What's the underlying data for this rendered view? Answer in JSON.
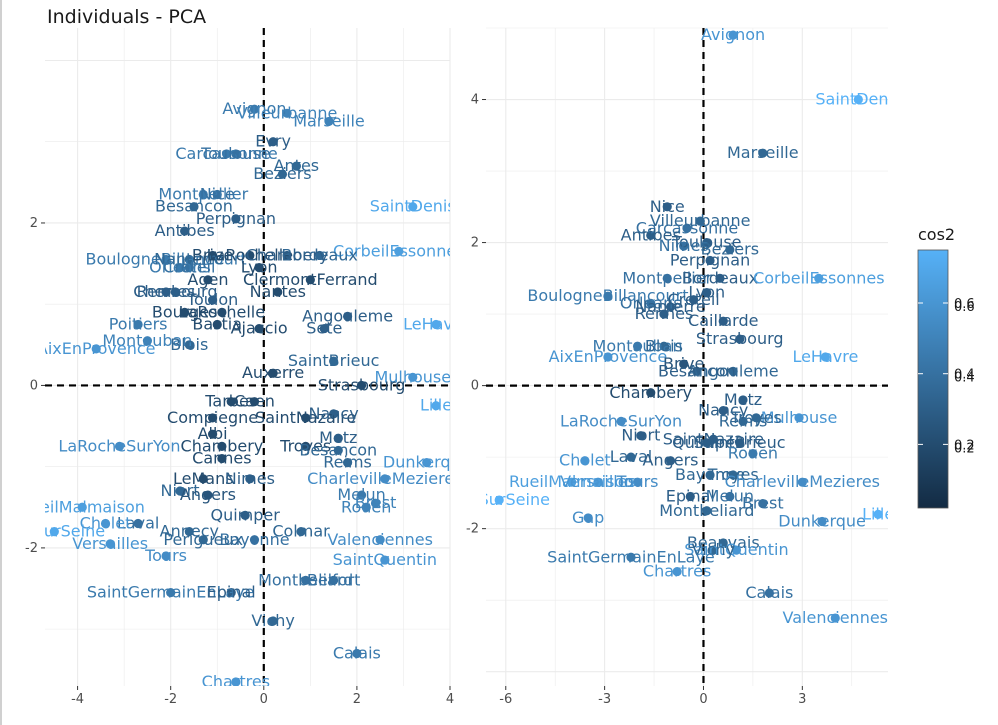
{
  "title": "Individuals - PCA",
  "legend": {
    "title": "cos2",
    "panel1_ticks": [
      0.2,
      0.4,
      0.6
    ],
    "panel2_ticks": [
      0.2,
      0.4,
      0.6
    ],
    "colors": {
      "low": "#132B43",
      "high": "#56B1F7"
    }
  },
  "chart_data": [
    {
      "type": "scatter",
      "title": "",
      "xlabel": "",
      "ylabel": "",
      "xlim": [
        -4.7,
        4.0
      ],
      "ylim": [
        -3.7,
        4.4
      ],
      "xticks": [
        -4,
        -2,
        0,
        2,
        4
      ],
      "yticks": [
        -2,
        0,
        2
      ],
      "grid": true,
      "legend_placement": "right",
      "points": [
        {
          "label": "Avignon",
          "x": -0.2,
          "y": 3.4,
          "cos2": 0.45
        },
        {
          "label": "Villeurbanne",
          "x": 0.5,
          "y": 3.35,
          "cos2": 0.5
        },
        {
          "label": "Marseille",
          "x": 1.4,
          "y": 3.25,
          "cos2": 0.5
        },
        {
          "label": "Evry",
          "x": 0.2,
          "y": 3.0,
          "cos2": 0.3
        },
        {
          "label": "Carcassonne",
          "x": -0.8,
          "y": 2.85,
          "cos2": 0.45
        },
        {
          "label": "Toulouse",
          "x": -0.6,
          "y": 2.85,
          "cos2": 0.4
        },
        {
          "label": "Antes",
          "x": 0.7,
          "y": 2.7,
          "cos2": 0.35
        },
        {
          "label": "Beziers",
          "x": 0.4,
          "y": 2.6,
          "cos2": 0.35
        },
        {
          "label": "Montpellier",
          "x": -1.3,
          "y": 2.35,
          "cos2": 0.45
        },
        {
          "label": "Nice",
          "x": -1.0,
          "y": 2.35,
          "cos2": 0.4
        },
        {
          "label": "Besancon",
          "x": -1.5,
          "y": 2.2,
          "cos2": 0.35
        },
        {
          "label": "SaintDenis",
          "x": 3.2,
          "y": 2.2,
          "cos2": 0.7
        },
        {
          "label": "Perpignan",
          "x": -0.6,
          "y": 2.05,
          "cos2": 0.3
        },
        {
          "label": "Antibes",
          "x": -1.7,
          "y": 1.9,
          "cos2": 0.3
        },
        {
          "label": "CorbeilEssonnes",
          "x": 2.9,
          "y": 1.65,
          "cos2": 0.65
        },
        {
          "label": "BoulogneBillancourt",
          "x": -2.1,
          "y": 1.55,
          "cos2": 0.45
        },
        {
          "label": "Nanterre",
          "x": -1.6,
          "y": 1.55,
          "cos2": 0.35
        },
        {
          "label": "Brive",
          "x": -1.1,
          "y": 1.6,
          "cos2": 0.2
        },
        {
          "label": "LaRochelle",
          "x": -0.3,
          "y": 1.6,
          "cos2": 0.2
        },
        {
          "label": "Bordeaux",
          "x": 1.2,
          "y": 1.6,
          "cos2": 0.35
        },
        {
          "label": "Chambery",
          "x": 0.5,
          "y": 1.6,
          "cos2": 0.3
        },
        {
          "label": "Orleans",
          "x": -1.8,
          "y": 1.45,
          "cos2": 0.45
        },
        {
          "label": "Creteil",
          "x": -1.6,
          "y": 1.45,
          "cos2": 0.4
        },
        {
          "label": "Lyon",
          "x": -0.1,
          "y": 1.45,
          "cos2": 0.2
        },
        {
          "label": "Agen",
          "x": -1.2,
          "y": 1.3,
          "cos2": 0.2
        },
        {
          "label": "ClermontFerrand",
          "x": 1.0,
          "y": 1.3,
          "cos2": 0.2
        },
        {
          "label": "Rennes",
          "x": -2.1,
          "y": 1.15,
          "cos2": 0.3
        },
        {
          "label": "Cherbourg",
          "x": -1.9,
          "y": 1.15,
          "cos2": 0.3
        },
        {
          "label": "Toulon",
          "x": -1.1,
          "y": 1.05,
          "cos2": 0.3
        },
        {
          "label": "Nantes",
          "x": 0.3,
          "y": 1.15,
          "cos2": 0.2
        },
        {
          "label": "Bourges",
          "x": -1.7,
          "y": 0.9,
          "cos2": 0.2
        },
        {
          "label": "LaRochelle2",
          "x": -0.9,
          "y": 0.9,
          "cos2": 0.2
        },
        {
          "label": "Angouleme",
          "x": 1.8,
          "y": 0.85,
          "cos2": 0.3
        },
        {
          "label": "LeHavre",
          "x": 3.7,
          "y": 0.75,
          "cos2": 0.7
        },
        {
          "label": "Poitiers",
          "x": -2.7,
          "y": 0.75,
          "cos2": 0.45
        },
        {
          "label": "Bastia",
          "x": -1.0,
          "y": 0.75,
          "cos2": 0.2
        },
        {
          "label": "Ajaccio",
          "x": -0.1,
          "y": 0.7,
          "cos2": 0.2
        },
        {
          "label": "Sete",
          "x": 1.3,
          "y": 0.7,
          "cos2": 0.3
        },
        {
          "label": "Montauban",
          "x": -2.5,
          "y": 0.55,
          "cos2": 0.5
        },
        {
          "label": "Blois",
          "x": -1.6,
          "y": 0.5,
          "cos2": 0.35
        },
        {
          "label": "AixEnProvence",
          "x": -3.6,
          "y": 0.45,
          "cos2": 0.6
        },
        {
          "label": "SaintBrieuc",
          "x": 1.5,
          "y": 0.3,
          "cos2": 0.35
        },
        {
          "label": "Auxerre",
          "x": 0.2,
          "y": 0.15,
          "cos2": 0.2
        },
        {
          "label": "Mulhouse",
          "x": 3.2,
          "y": 0.1,
          "cos2": 0.6
        },
        {
          "label": "Strasbourg",
          "x": 2.1,
          "y": 0.0,
          "cos2": 0.2
        },
        {
          "label": "Lille",
          "x": 3.7,
          "y": -0.25,
          "cos2": 0.7
        },
        {
          "label": "Tarbes",
          "x": -0.7,
          "y": -0.2,
          "cos2": 0.2
        },
        {
          "label": "Caen",
          "x": -0.2,
          "y": -0.2,
          "cos2": 0.2
        },
        {
          "label": "SaintNazaire",
          "x": 0.9,
          "y": -0.4,
          "cos2": 0.2
        },
        {
          "label": "Compiegne",
          "x": -1.1,
          "y": -0.4,
          "cos2": 0.2
        },
        {
          "label": "Nancy",
          "x": 1.5,
          "y": -0.35,
          "cos2": 0.3
        },
        {
          "label": "Albi",
          "x": -1.1,
          "y": -0.6,
          "cos2": 0.2
        },
        {
          "label": "Metz",
          "x": 1.6,
          "y": -0.65,
          "cos2": 0.3
        },
        {
          "label": "LaRocheSurYon",
          "x": -3.1,
          "y": -0.75,
          "cos2": 0.55
        },
        {
          "label": "Chambery2",
          "x": -0.9,
          "y": -0.75,
          "cos2": 0.2
        },
        {
          "label": "Troyes",
          "x": 0.9,
          "y": -0.75,
          "cos2": 0.2
        },
        {
          "label": "Besancon2",
          "x": 1.6,
          "y": -0.8,
          "cos2": 0.35
        },
        {
          "label": "Cannes",
          "x": -0.9,
          "y": -0.9,
          "cos2": 0.2
        },
        {
          "label": "Dunkerque",
          "x": 3.5,
          "y": -0.95,
          "cos2": 0.6
        },
        {
          "label": "Reims",
          "x": 1.8,
          "y": -0.95,
          "cos2": 0.35
        },
        {
          "label": "LeMans",
          "x": -1.3,
          "y": -1.15,
          "cos2": 0.2
        },
        {
          "label": "Nimes",
          "x": -0.3,
          "y": -1.15,
          "cos2": 0.3
        },
        {
          "label": "CharlevilleMezieres",
          "x": 2.6,
          "y": -1.15,
          "cos2": 0.55
        },
        {
          "label": "Niort",
          "x": -1.8,
          "y": -1.3,
          "cos2": 0.35
        },
        {
          "label": "Angers",
          "x": -1.2,
          "y": -1.35,
          "cos2": 0.25
        },
        {
          "label": "Melun",
          "x": 2.1,
          "y": -1.35,
          "cos2": 0.45
        },
        {
          "label": "Brest",
          "x": 2.4,
          "y": -1.45,
          "cos2": 0.5
        },
        {
          "label": "Rouen",
          "x": 2.2,
          "y": -1.5,
          "cos2": 0.5
        },
        {
          "label": "RueilMalmaison",
          "x": -3.9,
          "y": -1.5,
          "cos2": 0.65
        },
        {
          "label": "Quimper",
          "x": -0.4,
          "y": -1.6,
          "cos2": 0.3
        },
        {
          "label": "Laval",
          "x": -2.7,
          "y": -1.7,
          "cos2": 0.4
        },
        {
          "label": "Cholet",
          "x": -3.4,
          "y": -1.7,
          "cos2": 0.6
        },
        {
          "label": "Colmar",
          "x": 0.8,
          "y": -1.8,
          "cos2": 0.35
        },
        {
          "label": "Annecy",
          "x": -1.6,
          "y": -1.8,
          "cos2": 0.35
        },
        {
          "label": "Bayonne",
          "x": -0.2,
          "y": -1.9,
          "cos2": 0.4
        },
        {
          "label": "Perigueux",
          "x": -1.3,
          "y": -1.9,
          "cos2": 0.35
        },
        {
          "label": "Valenciennes",
          "x": 2.5,
          "y": -1.9,
          "cos2": 0.55
        },
        {
          "label": "IvrySurSeine",
          "x": -4.5,
          "y": -1.8,
          "cos2": 0.7
        },
        {
          "label": "Versailles",
          "x": -3.3,
          "y": -1.95,
          "cos2": 0.6
        },
        {
          "label": "Tours",
          "x": -2.1,
          "y": -2.1,
          "cos2": 0.55
        },
        {
          "label": "SaintQuentin",
          "x": 2.6,
          "y": -2.15,
          "cos2": 0.6
        },
        {
          "label": "Montbeliard",
          "x": 0.9,
          "y": -2.4,
          "cos2": 0.4
        },
        {
          "label": "Belfort",
          "x": 1.5,
          "y": -2.4,
          "cos2": 0.4
        },
        {
          "label": "SaintGermainEnLaye",
          "x": -2.0,
          "y": -2.55,
          "cos2": 0.45
        },
        {
          "label": "Epinal",
          "x": -0.7,
          "y": -2.55,
          "cos2": 0.3
        },
        {
          "label": "Vichy",
          "x": 0.2,
          "y": -2.9,
          "cos2": 0.35
        },
        {
          "label": "Calais",
          "x": 2.0,
          "y": -3.3,
          "cos2": 0.45
        },
        {
          "label": "Chartres",
          "x": -0.6,
          "y": -3.65,
          "cos2": 0.6
        }
      ]
    },
    {
      "type": "scatter",
      "title": "",
      "xlabel": "",
      "ylabel": "",
      "xlim": [
        -6.6,
        5.6
      ],
      "ylim": [
        -4.2,
        5.0
      ],
      "xticks": [
        -6,
        -3,
        0,
        3
      ],
      "yticks": [
        -2,
        0,
        2,
        4
      ],
      "grid": true,
      "legend_placement": "right",
      "points": [
        {
          "label": "Avignon",
          "x": 0.9,
          "y": 4.9,
          "cos2": 0.6
        },
        {
          "label": "SaintDenis",
          "x": 4.7,
          "y": 4.0,
          "cos2": 0.75
        },
        {
          "label": "Marseille",
          "x": 1.8,
          "y": 3.25,
          "cos2": 0.35
        },
        {
          "label": "Nice",
          "x": -1.1,
          "y": 2.5,
          "cos2": 0.3
        },
        {
          "label": "Villeurbanne",
          "x": -0.1,
          "y": 2.3,
          "cos2": 0.35
        },
        {
          "label": "Carcassonne",
          "x": -0.5,
          "y": 2.2,
          "cos2": 0.4
        },
        {
          "label": "Antibes",
          "x": -1.6,
          "y": 2.1,
          "cos2": 0.3
        },
        {
          "label": "Toulouse",
          "x": 0.1,
          "y": 2.0,
          "cos2": 0.3
        },
        {
          "label": "Nimes",
          "x": -0.6,
          "y": 1.95,
          "cos2": 0.4
        },
        {
          "label": "Beziers",
          "x": 0.8,
          "y": 1.9,
          "cos2": 0.35
        },
        {
          "label": "Perpignan",
          "x": 0.2,
          "y": 1.75,
          "cos2": 0.3
        },
        {
          "label": "Montpellier",
          "x": -1.1,
          "y": 1.5,
          "cos2": 0.4
        },
        {
          "label": "Bordeaux",
          "x": 0.5,
          "y": 1.5,
          "cos2": 0.3
        },
        {
          "label": "CorbeilEssonnes",
          "x": 3.5,
          "y": 1.5,
          "cos2": 0.65
        },
        {
          "label": "BoulogneBillancourt",
          "x": -2.9,
          "y": 1.25,
          "cos2": 0.45
        },
        {
          "label": "Orleans",
          "x": -1.6,
          "y": 1.15,
          "cos2": 0.4
        },
        {
          "label": "Nanterre",
          "x": -1.0,
          "y": 1.1,
          "cos2": 0.3
        },
        {
          "label": "Creteil",
          "x": -0.3,
          "y": 1.2,
          "cos2": 0.3
        },
        {
          "label": "Lyon",
          "x": 0.1,
          "y": 1.3,
          "cos2": 0.3
        },
        {
          "label": "Rennes",
          "x": -1.2,
          "y": 1.0,
          "cos2": 0.3
        },
        {
          "label": "Caillarde",
          "x": 0.6,
          "y": 0.9,
          "cos2": 0.3
        },
        {
          "label": "Strasbourg",
          "x": 1.1,
          "y": 0.65,
          "cos2": 0.3
        },
        {
          "label": "Montauban",
          "x": -2.0,
          "y": 0.55,
          "cos2": 0.45
        },
        {
          "label": "Blois",
          "x": -1.2,
          "y": 0.55,
          "cos2": 0.35
        },
        {
          "label": "AixEnProvence",
          "x": -2.9,
          "y": 0.4,
          "cos2": 0.6
        },
        {
          "label": "LeHavre",
          "x": 3.7,
          "y": 0.4,
          "cos2": 0.7
        },
        {
          "label": "Angouleme",
          "x": 0.9,
          "y": 0.2,
          "cos2": 0.35
        },
        {
          "label": "Brive",
          "x": -0.6,
          "y": 0.3,
          "cos2": 0.25
        },
        {
          "label": "Besancon",
          "x": -0.2,
          "y": 0.2,
          "cos2": 0.3
        },
        {
          "label": "Chambery",
          "x": -1.6,
          "y": -0.1,
          "cos2": 0.2
        },
        {
          "label": "Metz",
          "x": 1.2,
          "y": -0.2,
          "cos2": 0.3
        },
        {
          "label": "Nancy",
          "x": 0.6,
          "y": -0.35,
          "cos2": 0.3
        },
        {
          "label": "LaRocheSurYon",
          "x": -2.5,
          "y": -0.5,
          "cos2": 0.55
        },
        {
          "label": "Mulhouse",
          "x": 2.9,
          "y": -0.45,
          "cos2": 0.6
        },
        {
          "label": "Reims",
          "x": 1.2,
          "y": -0.5,
          "cos2": 0.35
        },
        {
          "label": "Troyes",
          "x": 1.6,
          "y": -0.45,
          "cos2": 0.35
        },
        {
          "label": "Niort",
          "x": -1.9,
          "y": -0.7,
          "cos2": 0.3
        },
        {
          "label": "SaintNazaire",
          "x": 0.3,
          "y": -0.75,
          "cos2": 0.3
        },
        {
          "label": "SaintBrieuc",
          "x": 1.1,
          "y": -0.8,
          "cos2": 0.3
        },
        {
          "label": "Quimper",
          "x": 0.1,
          "y": -0.8,
          "cos2": 0.3
        },
        {
          "label": "Rouen",
          "x": 1.5,
          "y": -0.95,
          "cos2": 0.45
        },
        {
          "label": "Laval",
          "x": -2.2,
          "y": -1.0,
          "cos2": 0.35
        },
        {
          "label": "Cholet",
          "x": -3.6,
          "y": -1.05,
          "cos2": 0.6
        },
        {
          "label": "Angers",
          "x": -1.0,
          "y": -1.05,
          "cos2": 0.3
        },
        {
          "label": "Bayonne",
          "x": 0.2,
          "y": -1.25,
          "cos2": 0.35
        },
        {
          "label": "Troyes2",
          "x": 0.9,
          "y": -1.25,
          "cos2": 0.35
        },
        {
          "label": "CharlevilleMezieres",
          "x": 3.0,
          "y": -1.35,
          "cos2": 0.55
        },
        {
          "label": "RueilMalmaison",
          "x": -4.0,
          "y": -1.35,
          "cos2": 0.65
        },
        {
          "label": "Versailles",
          "x": -3.2,
          "y": -1.35,
          "cos2": 0.6
        },
        {
          "label": "Tours",
          "x": -2.0,
          "y": -1.35,
          "cos2": 0.55
        },
        {
          "label": "IvrySurSeine",
          "x": -6.2,
          "y": -1.6,
          "cos2": 0.75
        },
        {
          "label": "Epinal",
          "x": -0.4,
          "y": -1.55,
          "cos2": 0.3
        },
        {
          "label": "Melun",
          "x": 0.8,
          "y": -1.55,
          "cos2": 0.4
        },
        {
          "label": "Brest",
          "x": 1.8,
          "y": -1.65,
          "cos2": 0.4
        },
        {
          "label": "Montbeliard",
          "x": 0.1,
          "y": -1.75,
          "cos2": 0.35
        },
        {
          "label": "Gap",
          "x": -3.5,
          "y": -1.85,
          "cos2": 0.55
        },
        {
          "label": "Dunkerque",
          "x": 3.6,
          "y": -1.9,
          "cos2": 0.55
        },
        {
          "label": "Lille",
          "x": 5.3,
          "y": -1.8,
          "cos2": 0.75
        },
        {
          "label": "Beauvais",
          "x": 0.6,
          "y": -2.2,
          "cos2": 0.35
        },
        {
          "label": "SaintQuentin",
          "x": 1.0,
          "y": -2.3,
          "cos2": 0.6
        },
        {
          "label": "Vichy",
          "x": 0.3,
          "y": -2.3,
          "cos2": 0.35
        },
        {
          "label": "SaintGermainEnLaye",
          "x": -2.2,
          "y": -2.4,
          "cos2": 0.45
        },
        {
          "label": "Chartres",
          "x": -0.8,
          "y": -2.6,
          "cos2": 0.6
        },
        {
          "label": "Calais",
          "x": 2.0,
          "y": -2.9,
          "cos2": 0.4
        },
        {
          "label": "Valenciennes",
          "x": 4.0,
          "y": -3.25,
          "cos2": 0.6
        }
      ]
    }
  ]
}
